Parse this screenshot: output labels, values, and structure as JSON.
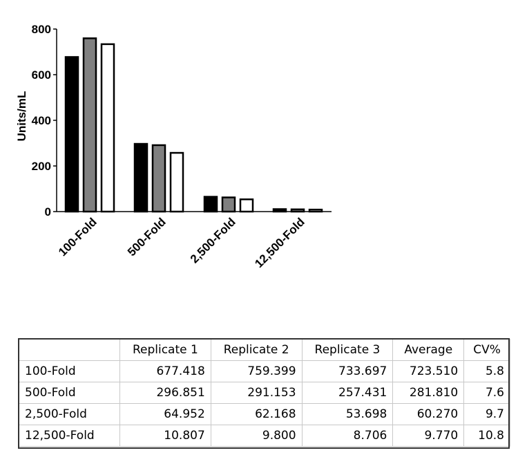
{
  "chart_data": {
    "type": "bar",
    "ylabel": "Units/mL",
    "xlabel": "",
    "ylim": [
      0,
      800
    ],
    "yticks": [
      0,
      200,
      400,
      600,
      800
    ],
    "categories": [
      "100-Fold",
      "500-Fold",
      "2,500-Fold",
      "12,500-Fold"
    ],
    "series": [
      {
        "values": [
          677.418,
          296.851,
          64.952,
          10.807
        ],
        "color": "#000000"
      },
      {
        "values": [
          759.399,
          291.153,
          62.168,
          9.8
        ],
        "color": "#808080"
      },
      {
        "values": [
          733.697,
          257.431,
          53.698,
          8.706
        ],
        "color": "#ffffff"
      }
    ],
    "grid": false
  },
  "table": {
    "headers": [
      "",
      "Replicate 1",
      "Replicate 2",
      "Replicate 3",
      "Average",
      "CV%"
    ],
    "rows": [
      [
        "100-Fold",
        "677.418",
        "759.399",
        "733.697",
        "723.510",
        "5.8"
      ],
      [
        "500-Fold",
        "296.851",
        "291.153",
        "257.431",
        "281.810",
        "7.6"
      ],
      [
        "2,500-Fold",
        "64.952",
        "62.168",
        "53.698",
        "60.270",
        "9.7"
      ],
      [
        "12,500-Fold",
        "10.807",
        "9.800",
        "8.706",
        "9.770",
        "10.8"
      ]
    ]
  }
}
